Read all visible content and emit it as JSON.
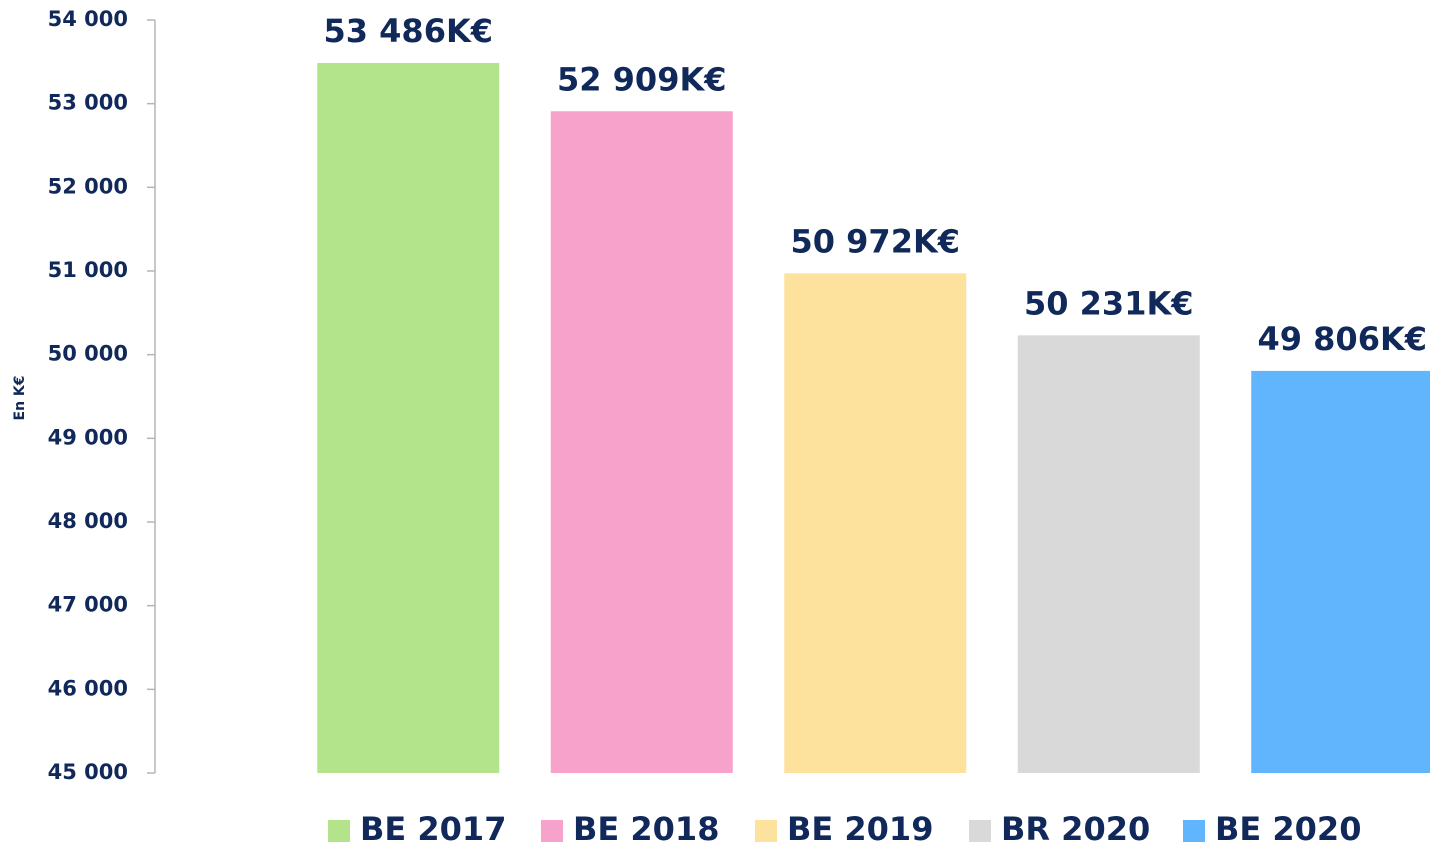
{
  "chart_data": {
    "type": "bar",
    "y_label": "En K€",
    "categories": [
      "BE 2017",
      "BE 2018",
      "BE 2019",
      "BR 2020",
      "BE 2020"
    ],
    "values": [
      53486,
      52909,
      50972,
      50231,
      49806
    ],
    "value_labels": [
      "53 486K€",
      "52 909K€",
      "50 972K€",
      "50 231K€",
      "49 806K€"
    ],
    "colors": [
      "#b3e38a",
      "#f6a2ca",
      "#fde29e",
      "#d9d9d9",
      "#61b5fc"
    ],
    "ylim": [
      45000,
      54000
    ],
    "yticks": [
      {
        "value": 45000,
        "label": "45 000"
      },
      {
        "value": 46000,
        "label": "46 000"
      },
      {
        "value": 47000,
        "label": "47 000"
      },
      {
        "value": 48000,
        "label": "48 000"
      },
      {
        "value": 49000,
        "label": "49 000"
      },
      {
        "value": 50000,
        "label": "50 000"
      },
      {
        "value": 51000,
        "label": "51 000"
      },
      {
        "value": 52000,
        "label": "52 000"
      },
      {
        "value": 53000,
        "label": "53 000"
      },
      {
        "value": 54000,
        "label": "54 000"
      }
    ],
    "grid": false,
    "legend": "bottom"
  }
}
